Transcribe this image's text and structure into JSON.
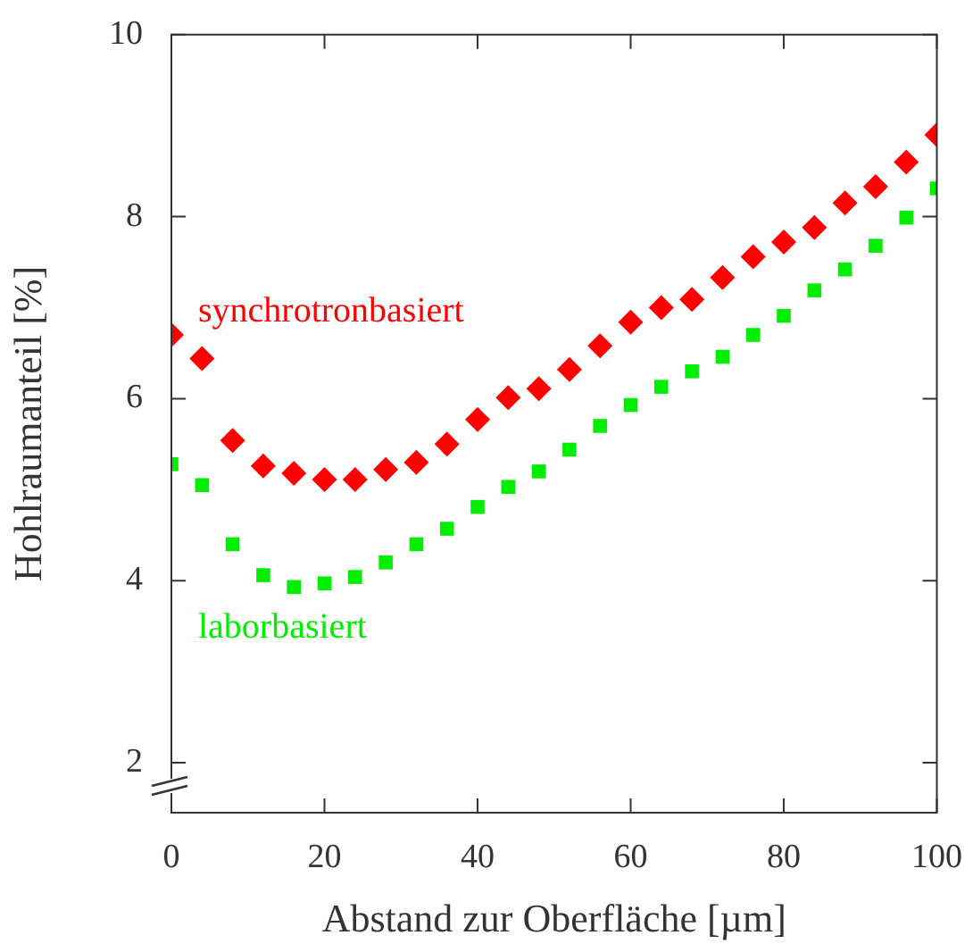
{
  "chart_data": {
    "type": "scatter",
    "xlabel": "Abstand zur Oberfläche [µm]",
    "ylabel": "Hohlraumanteil [%]",
    "x": [
      0,
      4,
      8,
      12,
      16,
      20,
      24,
      28,
      32,
      36,
      40,
      44,
      48,
      52,
      56,
      60,
      64,
      68,
      72,
      76,
      80,
      84,
      88,
      92,
      96,
      100
    ],
    "series": [
      {
        "name": "synchrotronbasiert",
        "color": "#ff0000",
        "marker": "diamond",
        "values": [
          6.7,
          6.44,
          5.54,
          5.26,
          5.18,
          5.11,
          5.11,
          5.22,
          5.3,
          5.5,
          5.77,
          6.01,
          6.11,
          6.32,
          6.58,
          6.84,
          7.0,
          7.09,
          7.33,
          7.56,
          7.72,
          7.88,
          8.15,
          8.33,
          8.6,
          8.9
        ]
      },
      {
        "name": "laborbasiert",
        "color": "#00ee00",
        "marker": "square",
        "values": [
          5.28,
          5.05,
          4.4,
          4.06,
          3.93,
          3.97,
          4.04,
          4.2,
          4.4,
          4.57,
          4.81,
          5.03,
          5.2,
          5.44,
          5.7,
          5.93,
          6.13,
          6.3,
          6.46,
          6.7,
          6.91,
          7.19,
          7.42,
          7.68,
          7.99,
          8.31
        ]
      }
    ],
    "xlim": [
      0,
      100
    ],
    "xticks": [
      0,
      20,
      40,
      60,
      80,
      100
    ],
    "ylim": [
      1.45,
      10
    ],
    "yticks": [
      2,
      4,
      6,
      8,
      10
    ],
    "grid": false,
    "legend": false
  }
}
